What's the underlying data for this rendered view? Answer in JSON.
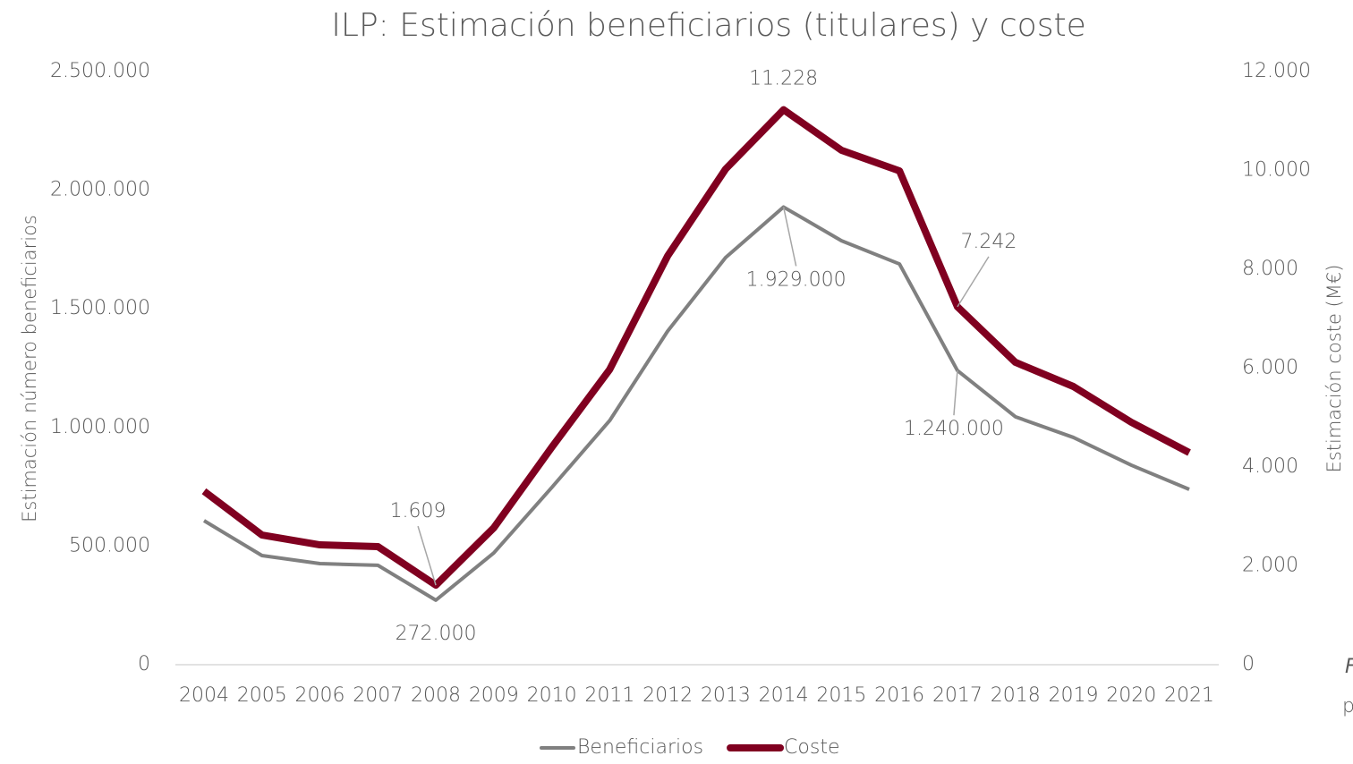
{
  "chart_data": {
    "type": "line",
    "title": "ILP: Estimación beneficiarios (titulares) y coste",
    "ylabel": "Estimación número beneficiarios",
    "y2label": "Estimación coste (M€)",
    "categories": [
      "2004",
      "2005",
      "2006",
      "2007",
      "2008",
      "2009",
      "2010",
      "2011",
      "2012",
      "2013",
      "2014",
      "2015",
      "2016",
      "2017",
      "2018",
      "2019",
      "2020",
      "2021"
    ],
    "series": [
      {
        "name": "Beneficiarios",
        "color": "#808080",
        "axis": "y",
        "values": [
          607000,
          460000,
          426000,
          419000,
          272000,
          471000,
          747000,
          1029000,
          1406000,
          1716000,
          1929000,
          1787000,
          1689000,
          1240000,
          1045000,
          958000,
          841000,
          739000
        ],
        "value_labels": [
          null,
          null,
          null,
          null,
          "272.000",
          null,
          null,
          null,
          null,
          null,
          "1.929.000",
          null,
          null,
          "1.240.000",
          null,
          null,
          null,
          null
        ]
      },
      {
        "name": "Coste",
        "color": "#800020",
        "axis": "y2",
        "values": [
          3511,
          2624,
          2425,
          2389,
          1609,
          2769,
          4398,
          5973,
          8270,
          10027,
          11228,
          10407,
          9991,
          7242,
          6118,
          5629,
          4905,
          4290
        ],
        "value_labels": [
          null,
          null,
          null,
          null,
          "1.609",
          null,
          null,
          null,
          null,
          null,
          "11.228",
          null,
          null,
          "7.242",
          null,
          null,
          null,
          null
        ]
      }
    ],
    "ylim": [
      0,
      2500000
    ],
    "yticks": [
      0,
      {
        "value": 500000,
        "label": "500.000"
      },
      {
        "value": 1000000,
        "label": "1.000.000"
      },
      {
        "value": 1500000,
        "label": "1.500.000"
      },
      {
        "value": 2000000,
        "label": "2.000.000"
      },
      {
        "value": 2500000,
        "label": "2.500.000"
      }
    ],
    "y2lim": [
      0,
      12000
    ],
    "y2ticks": [
      0,
      {
        "value": 2000,
        "label": "2.000"
      },
      {
        "value": 4000,
        "label": "4.000"
      },
      {
        "value": 6000,
        "label": "6.000"
      },
      {
        "value": 8000,
        "label": "8.000"
      },
      {
        "value": 10000,
        "label": "10.000"
      },
      {
        "value": 12000,
        "label": "12.000"
      }
    ],
    "grid": false,
    "legend": "bottom",
    "notes": [
      "F",
      "p"
    ]
  }
}
